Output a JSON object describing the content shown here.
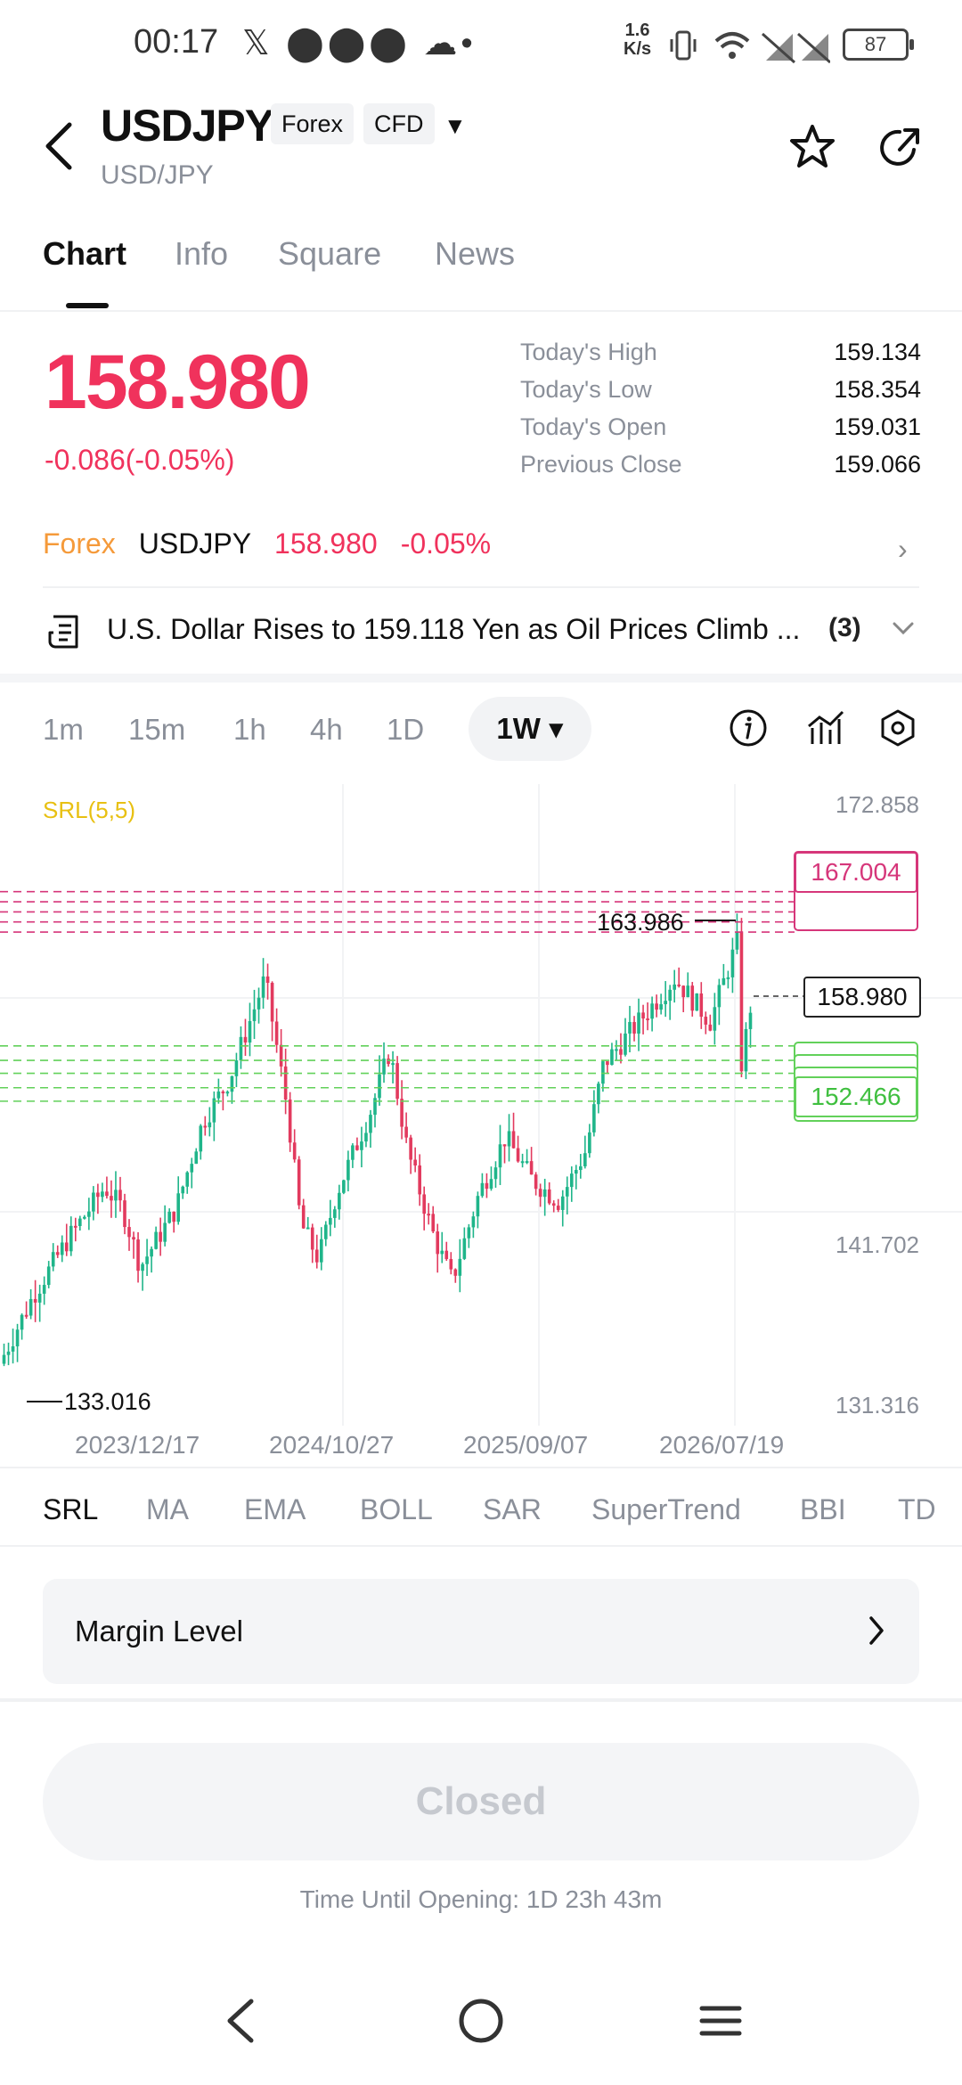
{
  "status_bar": {
    "time": "00:17",
    "left_icons": "𝕏 ⬤⬤⬤ ☁•",
    "net_speed_value": "1.6",
    "net_speed_unit": "K/s",
    "battery": "87"
  },
  "header": {
    "symbol": "USDJPY",
    "tags": [
      "Forex",
      "CFD"
    ],
    "subtitle": "USD/JPY"
  },
  "tabs": [
    "Chart",
    "Info",
    "Square",
    "News"
  ],
  "quote": {
    "price": "158.980",
    "change": "-0.086(-0.05%)",
    "stats": [
      {
        "label": "Today's High",
        "value": "159.134"
      },
      {
        "label": "Today's Low",
        "value": "158.354"
      },
      {
        "label": "Today's Open",
        "value": "159.031"
      },
      {
        "label": "Previous Close",
        "value": "159.066"
      }
    ]
  },
  "related": {
    "market": "Forex",
    "symbol": "USDJPY",
    "price": "158.980",
    "change": "-0.05%"
  },
  "news": {
    "headline": "U.S. Dollar Rises to 159.118 Yen as Oil Prices Climb ...",
    "count": "(3)"
  },
  "timeframes": [
    "1m",
    "15m",
    "1h",
    "4h",
    "1D"
  ],
  "timeframe_active": "1W ▾",
  "chart": {
    "indicator_label": "SRL(5,5)",
    "y_ticks": [
      "172.858",
      "141.702",
      "131.316"
    ],
    "x_ticks": [
      "2023/12/17",
      "2024/10/27",
      "2025/09/07",
      "2026/07/19"
    ],
    "max_label": "163.986",
    "min_label": "133.016",
    "resistance_label": "167.004",
    "support_label": "152.466",
    "current_label": "158.980",
    "colors": {
      "up": "#1fb58a",
      "down": "#e23a5e",
      "resistance": "#d6367a",
      "support": "#62d15a"
    }
  },
  "indicators": [
    "SRL",
    "MA",
    "EMA",
    "BOLL",
    "SAR",
    "SuperTrend",
    "BBI",
    "TD"
  ],
  "margin_level": "Margin Level",
  "trade_button": "Closed",
  "opening_text": "Time Until Opening: 1D 23h 43m"
}
